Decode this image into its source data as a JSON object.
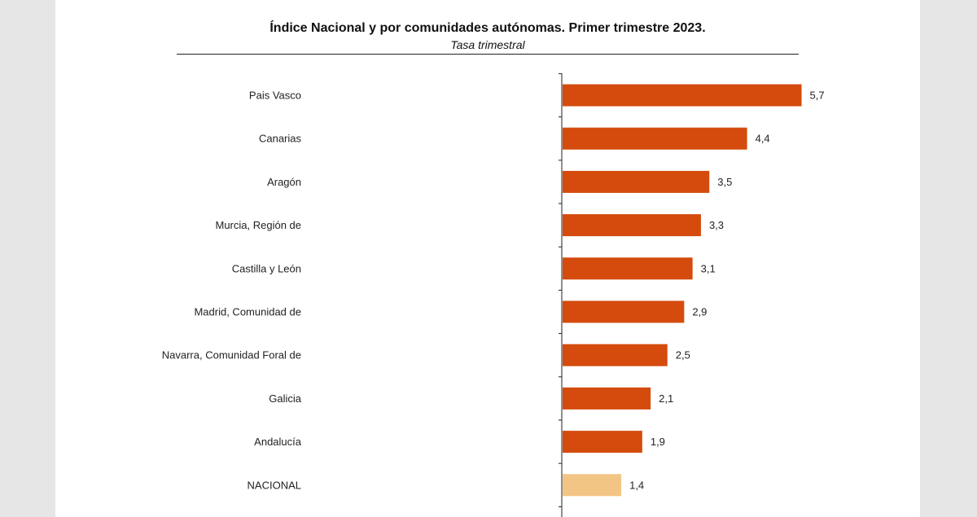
{
  "chart_data": {
    "type": "bar",
    "orientation": "horizontal",
    "title": "Índice Nacional y por comunidades autónomas. Primer trimestre 2023.",
    "subtitle": "Tasa trimestral",
    "categories": [
      "Pais Vasco",
      "Canarias",
      "Aragón",
      "Murcia, Región de",
      "Castilla y León",
      "Madrid, Comunidad de",
      "Navarra, Comunidad Foral de",
      "Galicia",
      "Andalucía",
      "NACIONAL"
    ],
    "values": [
      5.7,
      4.4,
      3.5,
      3.3,
      3.1,
      2.9,
      2.5,
      2.1,
      1.9,
      1.4
    ],
    "value_labels": [
      "5,7",
      "4,4",
      "3,5",
      "3,3",
      "3,1",
      "2,9",
      "2,5",
      "2,1",
      "1,9",
      "1,4"
    ],
    "colors": {
      "bar": "#d44b0d",
      "highlight": "#f2c585",
      "highlight_category": "NACIONAL"
    },
    "xlim": [
      0,
      6
    ],
    "grid": false,
    "legend": "none"
  }
}
